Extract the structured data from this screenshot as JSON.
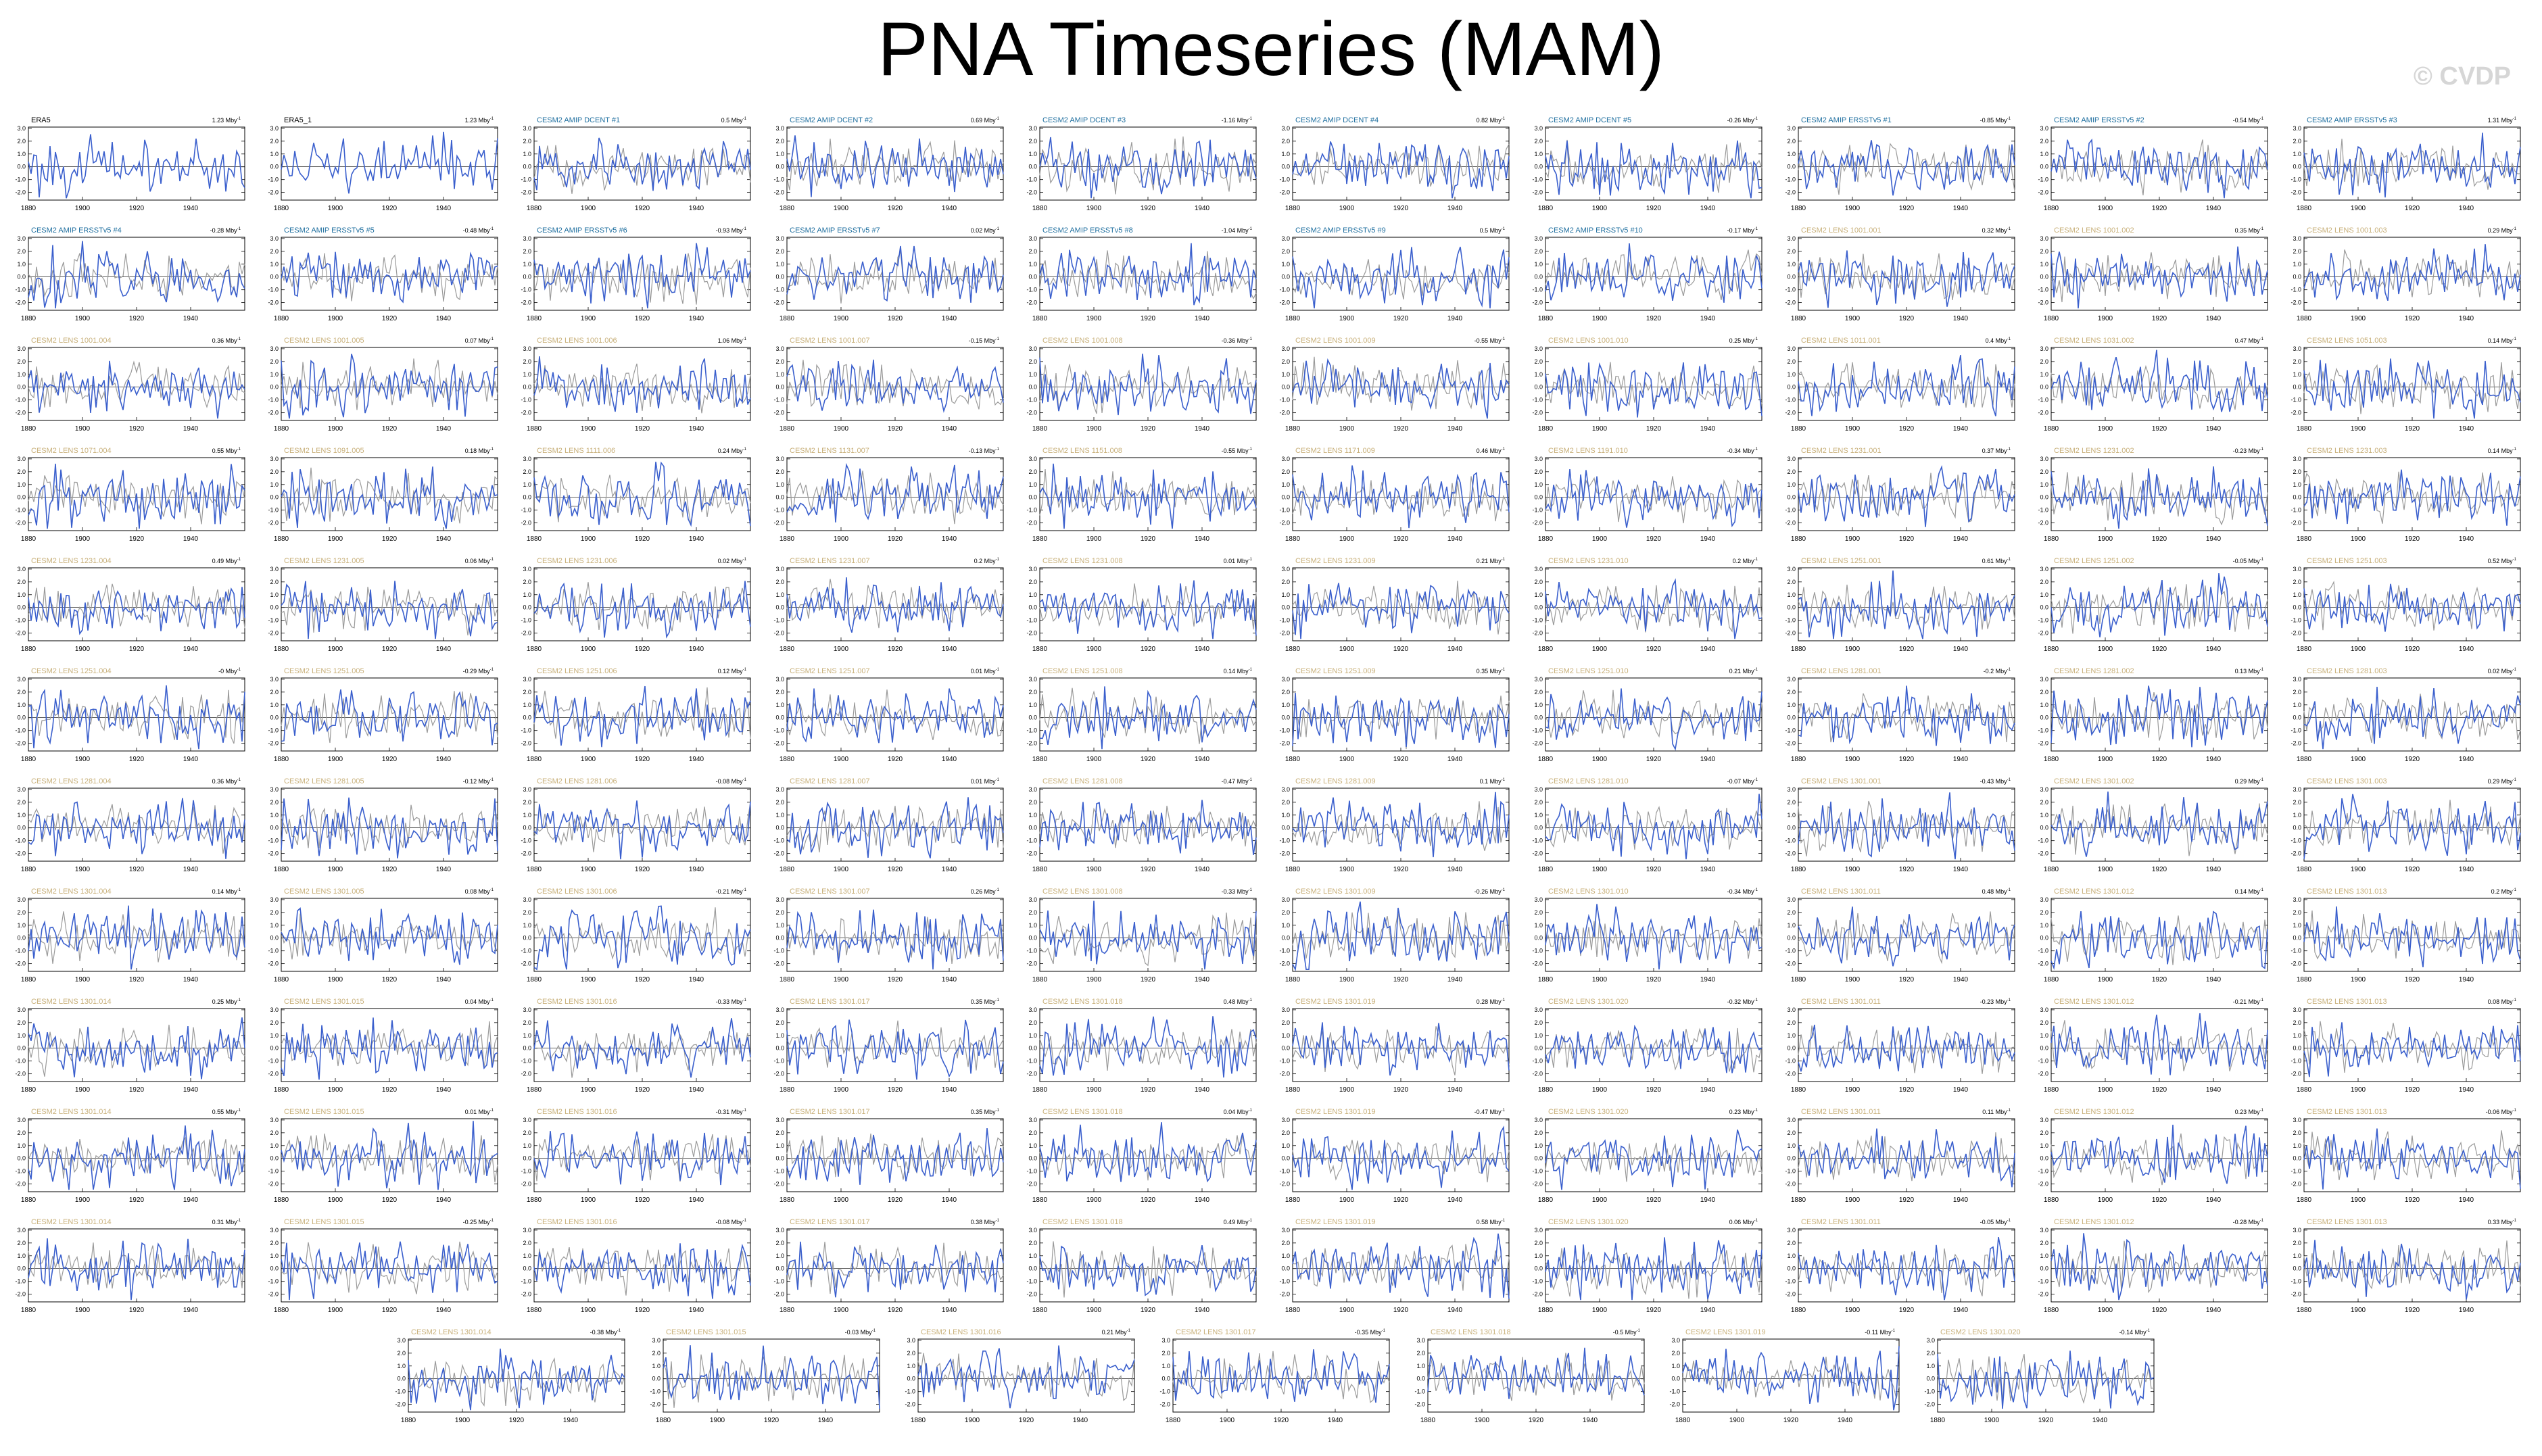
{
  "page": {
    "title": "PNA Timeseries (MAM)",
    "watermark": "© CVDP"
  },
  "colors": {
    "title_obs": "#000000",
    "title_amip": "#1f6f9f",
    "title_lens": "#c8b07a",
    "model_line": "#3a5fcd",
    "obs_line": "#9a9a9a",
    "axis": "#000000"
  },
  "chart_data": {
    "type": "line",
    "x_range": [
      1880,
      1960
    ],
    "x_ticks": [
      1880,
      1900,
      1920,
      1940
    ],
    "y_ticks": [
      -2.0,
      -1.0,
      0.0,
      1.0,
      2.0,
      3.0
    ],
    "ylim": [
      -2.6,
      3.1
    ],
    "trend_unit": "Mby",
    "panels": [
      {
        "title": "ERA5",
        "trend": "1.23 Mby"
      },
      {
        "title": "ERA5_1",
        "trend": "1.23 Mby"
      },
      {
        "title": "CESM2 AMIP DCENT #1",
        "trend": "0.5 Mby"
      },
      {
        "title": "CESM2 AMIP DCENT #2",
        "trend": "0.69 Mby"
      },
      {
        "title": "CESM2 AMIP DCENT #3",
        "trend": "-1.16 Mby"
      },
      {
        "title": "CESM2 AMIP DCENT #4",
        "trend": "0.82 Mby"
      },
      {
        "title": "CESM2 AMIP DCENT #5",
        "trend": "-0.26 Mby"
      },
      {
        "title": "CESM2 AMIP ERSSTv5 #1",
        "trend": "-0.85 Mby"
      },
      {
        "title": "CESM2 AMIP ERSSTv5 #2",
        "trend": "-0.54 Mby"
      },
      {
        "title": "CESM2 AMIP ERSSTv5 #3",
        "trend": "1.31 Mby"
      },
      {
        "title": "CESM2 AMIP ERSSTv5 #4",
        "trend": "-0.28 Mby"
      },
      {
        "title": "CESM2 AMIP ERSSTv5 #5",
        "trend": "-0.48 Mby"
      },
      {
        "title": "CESM2 AMIP ERSSTv5 #6",
        "trend": "-0.93 Mby"
      },
      {
        "title": "CESM2 AMIP ERSSTv5 #7",
        "trend": "0.02 Mby"
      },
      {
        "title": "CESM2 AMIP ERSSTv5 #8",
        "trend": "-1.04 Mby"
      },
      {
        "title": "CESM2 AMIP ERSSTv5 #9",
        "trend": "0.5 Mby"
      },
      {
        "title": "CESM2 AMIP ERSSTv5 #10",
        "trend": "-0.17 Mby"
      },
      {
        "title": "CESM2 LENS 1001.001",
        "trend": "0.32 Mby"
      },
      {
        "title": "CESM2 LENS 1001.002",
        "trend": "0.35 Mby"
      },
      {
        "title": "CESM2 LENS 1001.003",
        "trend": "0.29 Mby"
      },
      {
        "title": "CESM2 LENS 1001.004",
        "trend": "0.36 Mby"
      },
      {
        "title": "CESM2 LENS 1001.005",
        "trend": "0.07 Mby"
      },
      {
        "title": "CESM2 LENS 1001.006",
        "trend": "1.06 Mby"
      },
      {
        "title": "CESM2 LENS 1001.007",
        "trend": "-0.15 Mby"
      },
      {
        "title": "CESM2 LENS 1001.008",
        "trend": "-0.36 Mby"
      },
      {
        "title": "CESM2 LENS 1001.009",
        "trend": "-0.55 Mby"
      },
      {
        "title": "CESM2 LENS 1001.010",
        "trend": "0.25 Mby"
      },
      {
        "title": "CESM2 LENS 1011.001",
        "trend": "0.4 Mby"
      },
      {
        "title": "CESM2 LENS 1031.002",
        "trend": "0.47 Mby"
      },
      {
        "title": "CESM2 LENS 1051.003",
        "trend": "0.14 Mby"
      },
      {
        "title": "CESM2 LENS 1071.004",
        "trend": "0.55 Mby"
      },
      {
        "title": "CESM2 LENS 1091.005",
        "trend": "0.18 Mby"
      },
      {
        "title": "CESM2 LENS 1111.006",
        "trend": "0.24 Mby"
      },
      {
        "title": "CESM2 LENS 1131.007",
        "trend": "-0.13 Mby"
      },
      {
        "title": "CESM2 LENS 1151.008",
        "trend": "-0.55 Mby"
      },
      {
        "title": "CESM2 LENS 1171.009",
        "trend": "0.46 Mby"
      },
      {
        "title": "CESM2 LENS 1191.010",
        "trend": "-0.34 Mby"
      },
      {
        "title": "CESM2 LENS 1231.001",
        "trend": "0.37 Mby"
      },
      {
        "title": "CESM2 LENS 1231.002",
        "trend": "-0.23 Mby"
      },
      {
        "title": "CESM2 LENS 1231.003",
        "trend": "0.14 Mby"
      },
      {
        "title": "CESM2 LENS 1231.004",
        "trend": "0.49 Mby"
      },
      {
        "title": "CESM2 LENS 1231.005",
        "trend": "0.06 Mby"
      },
      {
        "title": "CESM2 LENS 1231.006",
        "trend": "0.02 Mby"
      },
      {
        "title": "CESM2 LENS 1231.007",
        "trend": "0.2 Mby"
      },
      {
        "title": "CESM2 LENS 1231.008",
        "trend": "0.01 Mby"
      },
      {
        "title": "CESM2 LENS 1231.009",
        "trend": "0.21 Mby"
      },
      {
        "title": "CESM2 LENS 1231.010",
        "trend": "0.2 Mby"
      },
      {
        "title": "CESM2 LENS 1251.001",
        "trend": "0.61 Mby"
      },
      {
        "title": "CESM2 LENS 1251.002",
        "trend": "-0.05 Mby"
      },
      {
        "title": "CESM2 LENS 1251.003",
        "trend": "0.52 Mby"
      },
      {
        "title": "CESM2 LENS 1251.004",
        "trend": "-0 Mby"
      },
      {
        "title": "CESM2 LENS 1251.005",
        "trend": "-0.29 Mby"
      },
      {
        "title": "CESM2 LENS 1251.006",
        "trend": "0.12 Mby"
      },
      {
        "title": "CESM2 LENS 1251.007",
        "trend": "0.01 Mby"
      },
      {
        "title": "CESM2 LENS 1251.008",
        "trend": "0.14 Mby"
      },
      {
        "title": "CESM2 LENS 1251.009",
        "trend": "0.35 Mby"
      },
      {
        "title": "CESM2 LENS 1251.010",
        "trend": "0.21 Mby"
      },
      {
        "title": "CESM2 LENS 1281.001",
        "trend": "-0.2 Mby"
      },
      {
        "title": "CESM2 LENS 1281.002",
        "trend": "0.13 Mby"
      },
      {
        "title": "CESM2 LENS 1281.003",
        "trend": "0.02 Mby"
      },
      {
        "title": "CESM2 LENS 1281.004",
        "trend": "0.36 Mby"
      },
      {
        "title": "CESM2 LENS 1281.005",
        "trend": "-0.12 Mby"
      },
      {
        "title": "CESM2 LENS 1281.006",
        "trend": "-0.08 Mby"
      },
      {
        "title": "CESM2 LENS 1281.007",
        "trend": "0.01 Mby"
      },
      {
        "title": "CESM2 LENS 1281.008",
        "trend": "-0.47 Mby"
      },
      {
        "title": "CESM2 LENS 1281.009",
        "trend": "0.1 Mby"
      },
      {
        "title": "CESM2 LENS 1281.010",
        "trend": "-0.07 Mby"
      },
      {
        "title": "CESM2 LENS 1301.001",
        "trend": "-0.43 Mby"
      },
      {
        "title": "CESM2 LENS 1301.002",
        "trend": "0.29 Mby"
      },
      {
        "title": "CESM2 LENS 1301.003",
        "trend": "0.29 Mby"
      },
      {
        "title": "CESM2 LENS 1301.004",
        "trend": "0.14 Mby"
      },
      {
        "title": "CESM2 LENS 1301.005",
        "trend": "0.08 Mby"
      },
      {
        "title": "CESM2 LENS 1301.006",
        "trend": "-0.21 Mby"
      },
      {
        "title": "CESM2 LENS 1301.007",
        "trend": "0.26 Mby"
      },
      {
        "title": "CESM2 LENS 1301.008",
        "trend": "-0.33 Mby"
      },
      {
        "title": "CESM2 LENS 1301.009",
        "trend": "-0.26 Mby"
      },
      {
        "title": "CESM2 LENS 1301.010",
        "trend": "-0.34 Mby"
      },
      {
        "title": "CESM2 LENS 1301.011",
        "trend": "0.48 Mby"
      },
      {
        "title": "CESM2 LENS 1301.012",
        "trend": "0.14 Mby"
      },
      {
        "title": "CESM2 LENS 1301.013",
        "trend": "0.2 Mby"
      },
      {
        "title": "CESM2 LENS 1301.014",
        "trend": "0.25 Mby"
      },
      {
        "title": "CESM2 LENS 1301.015",
        "trend": "0.04 Mby"
      },
      {
        "title": "CESM2 LENS 1301.016",
        "trend": "-0.33 Mby"
      },
      {
        "title": "CESM2 LENS 1301.017",
        "trend": "0.35 Mby"
      },
      {
        "title": "CESM2 LENS 1301.018",
        "trend": "0.48 Mby"
      },
      {
        "title": "CESM2 LENS 1301.019",
        "trend": "0.28 Mby"
      },
      {
        "title": "CESM2 LENS 1301.020",
        "trend": "-0.32 Mby"
      },
      {
        "title": "CESM2 LENS 1301.011",
        "trend": "-0.23 Mby"
      },
      {
        "title": "CESM2 LENS 1301.012",
        "trend": "-0.21 Mby"
      },
      {
        "title": "CESM2 LENS 1301.013",
        "trend": "0.08 Mby"
      },
      {
        "title": "CESM2 LENS 1301.014",
        "trend": "0.55 Mby"
      },
      {
        "title": "CESM2 LENS 1301.015",
        "trend": "0.01 Mby"
      },
      {
        "title": "CESM2 LENS 1301.016",
        "trend": "-0.31 Mby"
      },
      {
        "title": "CESM2 LENS 1301.017",
        "trend": "0.35 Mby"
      },
      {
        "title": "CESM2 LENS 1301.018",
        "trend": "0.04 Mby"
      },
      {
        "title": "CESM2 LENS 1301.019",
        "trend": "-0.47 Mby"
      },
      {
        "title": "CESM2 LENS 1301.020",
        "trend": "0.23 Mby"
      },
      {
        "title": "CESM2 LENS 1301.011",
        "trend": "0.11 Mby"
      },
      {
        "title": "CESM2 LENS 1301.012",
        "trend": "0.23 Mby"
      },
      {
        "title": "CESM2 LENS 1301.013",
        "trend": "-0.06 Mby"
      },
      {
        "title": "CESM2 LENS 1301.014",
        "trend": "0.31 Mby"
      },
      {
        "title": "CESM2 LENS 1301.015",
        "trend": "-0.25 Mby"
      },
      {
        "title": "CESM2 LENS 1301.016",
        "trend": "-0.08 Mby"
      },
      {
        "title": "CESM2 LENS 1301.017",
        "trend": "0.38 Mby"
      },
      {
        "title": "CESM2 LENS 1301.018",
        "trend": "0.49 Mby"
      },
      {
        "title": "CESM2 LENS 1301.019",
        "trend": "0.58 Mby"
      },
      {
        "title": "CESM2 LENS 1301.020",
        "trend": "0.06 Mby"
      },
      {
        "title": "CESM2 LENS 1301.011",
        "trend": "-0.05 Mby"
      },
      {
        "title": "CESM2 LENS 1301.012",
        "trend": "-0.28 Mby"
      },
      {
        "title": "CESM2 LENS 1301.013",
        "trend": "0.33 Mby"
      },
      {
        "title": "CESM2 LENS 1301.014",
        "trend": "-0.38 Mby"
      },
      {
        "title": "CESM2 LENS 1301.015",
        "trend": "-0.03 Mby"
      },
      {
        "title": "CESM2 LENS 1301.016",
        "trend": "0.21 Mby"
      },
      {
        "title": "CESM2 LENS 1301.017",
        "trend": "-0.35 Mby"
      },
      {
        "title": "CESM2 LENS 1301.018",
        "trend": "-0.5 Mby"
      },
      {
        "title": "CESM2 LENS 1301.019",
        "trend": "-0.11 Mby"
      },
      {
        "title": "CESM2 LENS 1301.020",
        "trend": "-0.14 Mby"
      }
    ]
  }
}
